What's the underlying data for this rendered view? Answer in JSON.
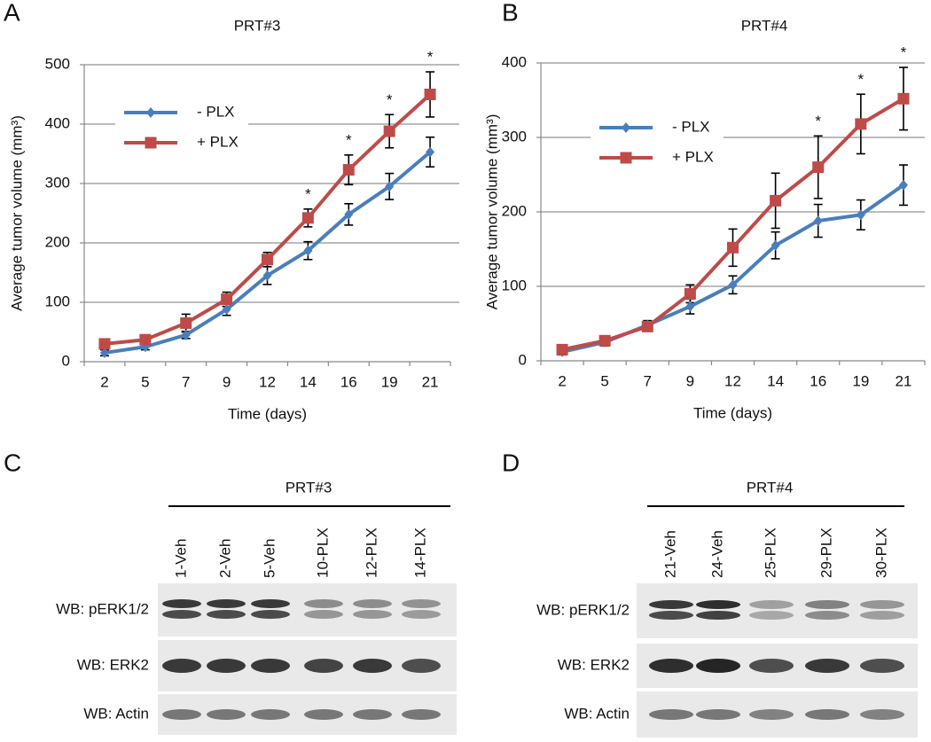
{
  "panels": [
    "A",
    "B",
    "C",
    "D"
  ],
  "chart_data": [
    {
      "type": "line",
      "title": "PRT#3",
      "x_label": "Time (days)",
      "y_label": "Average tumor volume (mm³)",
      "categories": [
        "2",
        "5",
        "7",
        "9",
        "12",
        "14",
        "16",
        "19",
        "21"
      ],
      "series": [
        {
          "name": "- PLX",
          "color": "#4a7ebb",
          "marker": "diamond",
          "values": [
            15,
            25,
            45,
            88,
            145,
            187,
            248,
            295,
            353
          ],
          "errors": [
            5,
            5,
            6,
            10,
            15,
            15,
            18,
            22,
            25
          ]
        },
        {
          "name": "+ PLX",
          "color": "#be4b48",
          "marker": "square",
          "values": [
            30,
            37,
            65,
            105,
            172,
            242,
            323,
            388,
            450
          ],
          "errors": [
            6,
            5,
            15,
            12,
            12,
            15,
            25,
            28,
            38
          ]
        }
      ],
      "annotations": [
        {
          "category": "14",
          "text": "*"
        },
        {
          "category": "16",
          "text": "*"
        },
        {
          "category": "19",
          "text": "*"
        },
        {
          "category": "21",
          "text": "*"
        }
      ],
      "ylim": [
        0,
        500
      ],
      "yticks": [
        0,
        100,
        200,
        300,
        400,
        500
      ],
      "grid": true,
      "legend": "upper left"
    },
    {
      "type": "line",
      "title": "PRT#4",
      "x_label": "Time (days)",
      "y_label": "Average tumor volume (mm³)",
      "categories": [
        "2",
        "5",
        "7",
        "9",
        "12",
        "14",
        "16",
        "19",
        "21"
      ],
      "series": [
        {
          "name": "- PLX",
          "color": "#4a7ebb",
          "marker": "diamond",
          "values": [
            12,
            25,
            48,
            73,
            102,
            155,
            188,
            196,
            236
          ],
          "errors": [
            4,
            5,
            6,
            10,
            12,
            18,
            22,
            20,
            27
          ]
        },
        {
          "name": "+ PLX",
          "color": "#be4b48",
          "marker": "square",
          "values": [
            15,
            27,
            46,
            90,
            152,
            215,
            260,
            318,
            352
          ],
          "errors": [
            4,
            4,
            6,
            12,
            25,
            37,
            42,
            40,
            42
          ]
        }
      ],
      "annotations": [
        {
          "category": "16",
          "text": "*"
        },
        {
          "category": "19",
          "text": "*"
        },
        {
          "category": "21",
          "text": "*"
        }
      ],
      "ylim": [
        0,
        400
      ],
      "yticks": [
        0,
        100,
        200,
        300,
        400
      ],
      "grid": true,
      "legend": "upper left"
    }
  ],
  "blots": [
    {
      "title": "PRT#3",
      "lanes": [
        "1-Veh",
        "2-Veh",
        "5-Veh",
        "10-PLX",
        "12-PLX",
        "14-PLX"
      ],
      "rows": [
        "WB: pERK1/2",
        "WB: ERK2",
        "WB: Actin"
      ]
    },
    {
      "title": "PRT#4",
      "lanes": [
        "21-Veh",
        "24-Veh",
        "25-PLX",
        "29-PLX",
        "30-PLX"
      ],
      "rows": [
        "WB: pERK1/2",
        "WB: ERK2",
        "WB: Actin"
      ]
    }
  ]
}
